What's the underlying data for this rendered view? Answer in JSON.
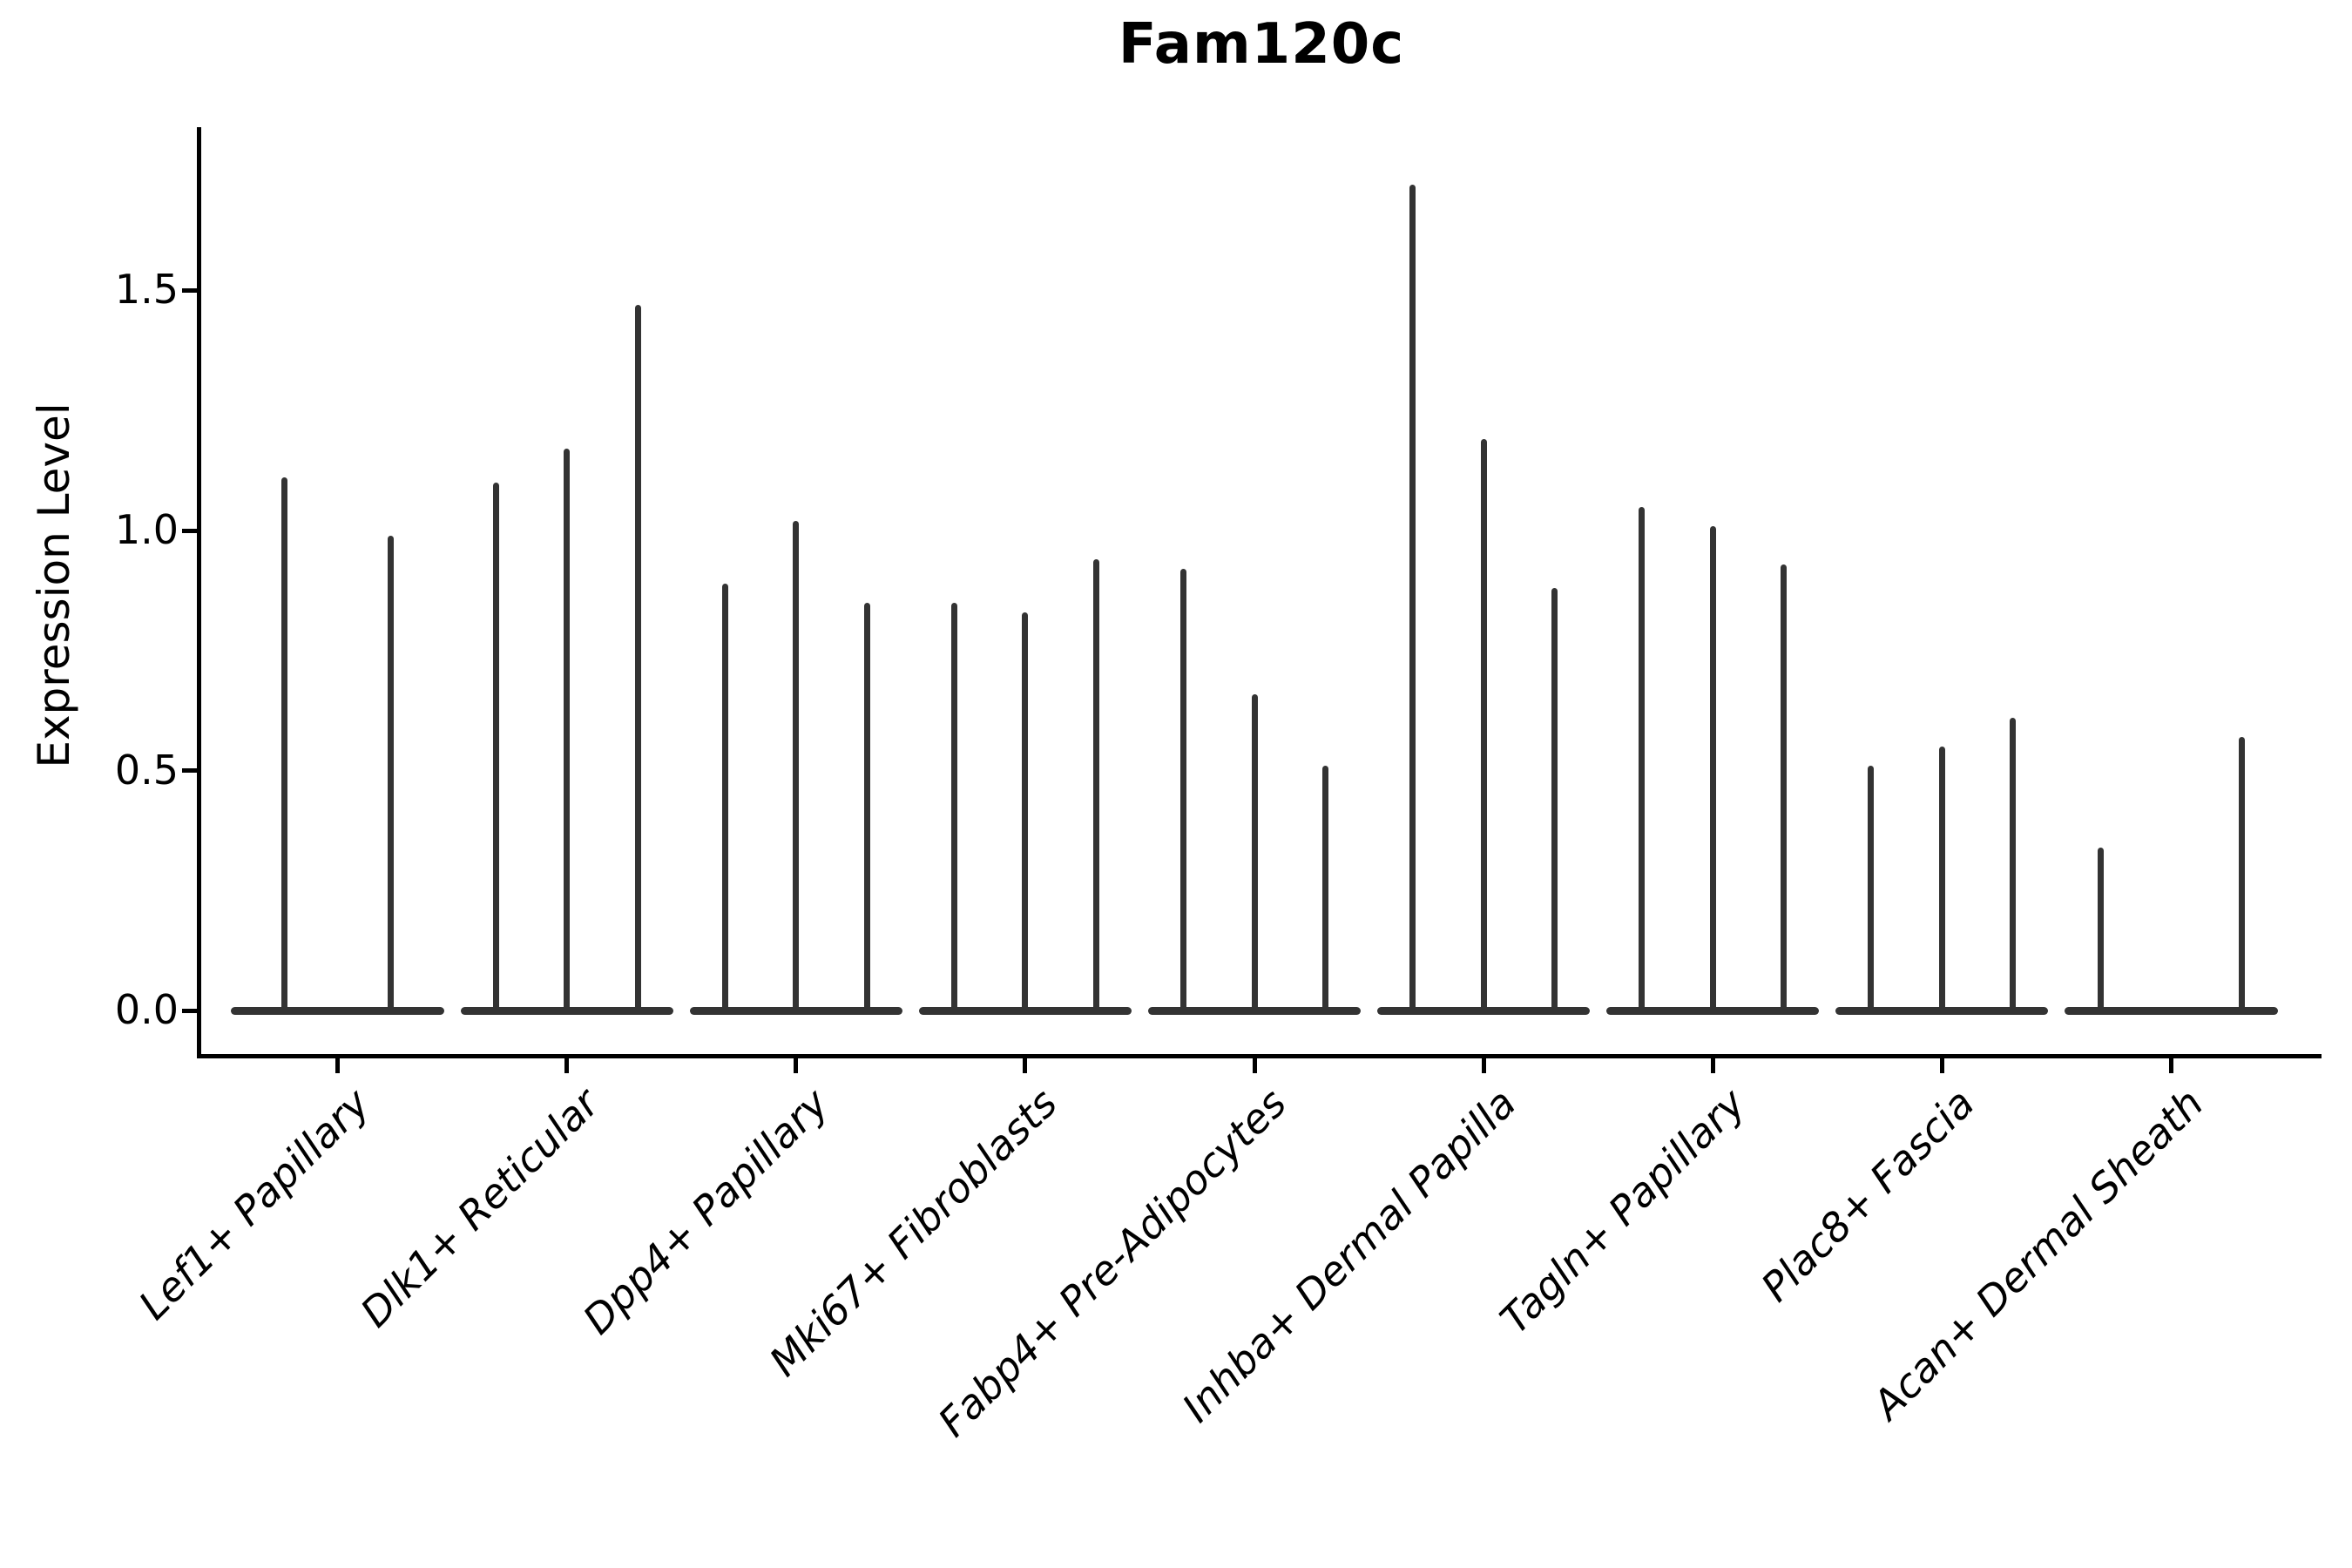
{
  "chart_data": {
    "type": "violin",
    "title": "Fam120c",
    "xlabel": "",
    "ylabel": "Expression Level",
    "ylim": [
      -0.09,
      1.84
    ],
    "grid": false,
    "legend": "none",
    "x_tick_rotation_deg": 45,
    "y_ticks": [
      {
        "value": 0.0,
        "label": "0.0"
      },
      {
        "value": 0.5,
        "label": "0.5"
      },
      {
        "value": 1.0,
        "label": "1.0"
      },
      {
        "value": 1.5,
        "label": "1.5"
      }
    ],
    "categories": [
      "Lef1+ Papillary",
      "Dlk1+ Reticular",
      "Dpp4+ Papillary",
      "Mki67+ Fibroblasts",
      "Fabp4+ Pre-Adipocytes",
      "Inhba+ Dermal Papilla",
      "Tagln+ Papillary",
      "Plac8+ Fascia",
      "Acan+ Dermal Sheath"
    ],
    "groups": [
      {
        "category": "Lef1+ Papillary",
        "violin_peaks": [
          1.11,
          0.99
        ]
      },
      {
        "category": "Dlk1+ Reticular",
        "violin_peaks": [
          1.1,
          1.17,
          1.47
        ]
      },
      {
        "category": "Dpp4+ Papillary",
        "violin_peaks": [
          0.89,
          1.02,
          0.85
        ]
      },
      {
        "category": "Mki67+ Fibroblasts",
        "violin_peaks": [
          0.85,
          0.83,
          0.94
        ]
      },
      {
        "category": "Fabp4+ Pre-Adipocytes",
        "violin_peaks": [
          0.92,
          0.66,
          0.51
        ]
      },
      {
        "category": "Inhba+ Dermal Papilla",
        "violin_peaks": [
          1.72,
          1.19,
          0.88
        ]
      },
      {
        "category": "Tagln+ Papillary",
        "violin_peaks": [
          1.05,
          1.01,
          0.93
        ]
      },
      {
        "category": "Plac8+ Fascia",
        "violin_peaks": [
          0.51,
          0.55,
          0.61
        ]
      },
      {
        "category": "Acan+ Dermal Sheath",
        "violin_peaks": [
          0.34,
          0,
          0.57
        ]
      }
    ],
    "colors": {
      "violin": "#333333",
      "axis": "#000000",
      "text": "#000000",
      "background": "#ffffff"
    }
  }
}
